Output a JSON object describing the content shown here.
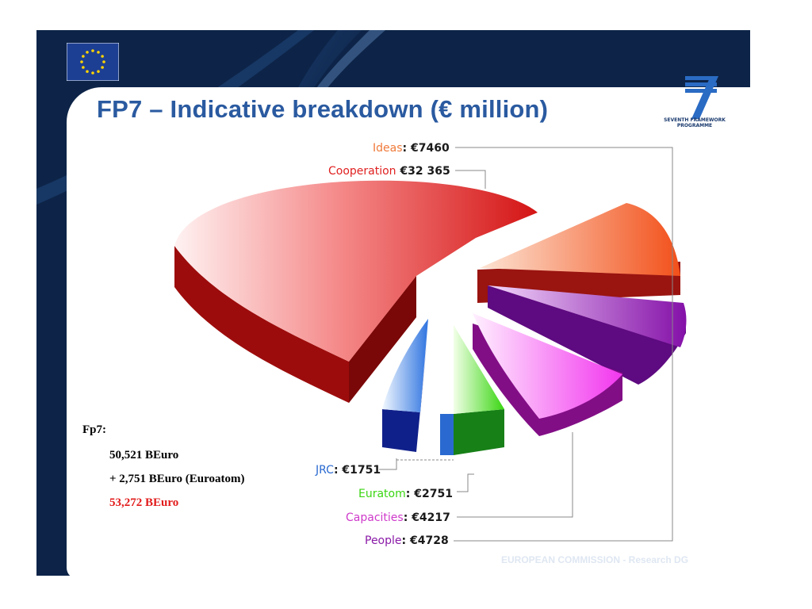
{
  "title": "FP7 – Indicative breakdown (€ million)",
  "logo": {
    "fp7_text_1": "SEVENTH FRAMEWORK",
    "fp7_text_2": "PROGRAMME"
  },
  "footer": "EUROPEAN COMMISSION - Research DG",
  "notes": {
    "heading": "Fp7:",
    "line1": "50,521 BEuro",
    "line2": "+ 2,751 BEuro (Euroatom)",
    "total": "53,272 BEuro",
    "total_color": "#e21b1b"
  },
  "chart_data": {
    "type": "pie",
    "title": "FP7 – Indicative breakdown (€ million)",
    "unit": "€ million",
    "slices": [
      {
        "name": "Cooperation",
        "value": 32365,
        "value_label": "€32 365",
        "color": "#e02020"
      },
      {
        "name": "Ideas",
        "value": 7460,
        "value_label": "€7460",
        "color": "#f07a3a"
      },
      {
        "name": "People",
        "value": 4728,
        "value_label": "€4728",
        "color": "#8a1aa8"
      },
      {
        "name": "Capacities",
        "value": 4217,
        "value_label": "€4217",
        "color": "#cf3acb"
      },
      {
        "name": "Euratom",
        "value": 2751,
        "value_label": "€2751",
        "color": "#3a9e2a"
      },
      {
        "name": "JRC",
        "value": 1751,
        "value_label": "€1751",
        "color": "#2a6ad0"
      }
    ]
  }
}
